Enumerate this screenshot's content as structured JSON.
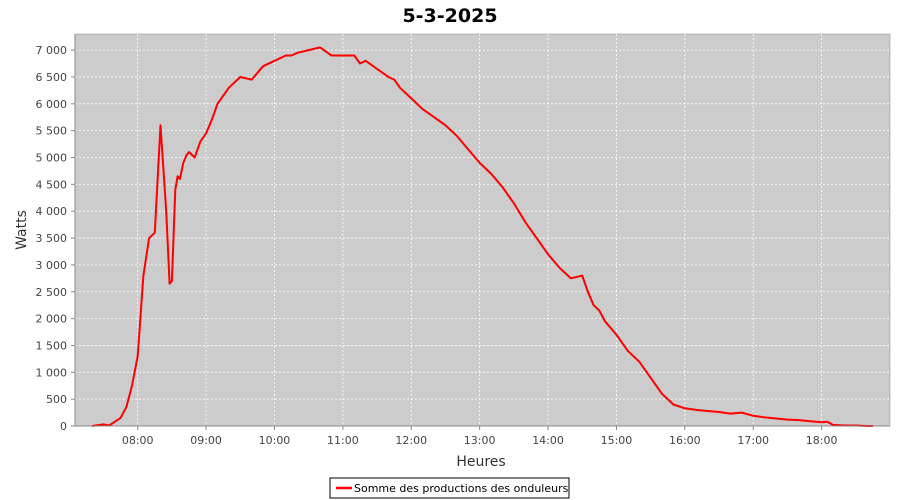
{
  "chart_data": {
    "type": "line",
    "title": "5-3-2025",
    "xlabel": "Heures",
    "ylabel": "Watts",
    "xlim": [
      "07:05",
      "19:00"
    ],
    "ylim": [
      0,
      7300
    ],
    "grid": true,
    "legend_position": "bottom-center",
    "colors": {
      "plot_background": "#cccccc",
      "grid": "#ffffff",
      "series": "#ff0000"
    },
    "x_ticks": [
      "08:00",
      "09:00",
      "10:00",
      "11:00",
      "12:00",
      "13:00",
      "14:00",
      "15:00",
      "16:00",
      "17:00",
      "18:00"
    ],
    "y_ticks": [
      "0",
      "500",
      "1 000",
      "1 500",
      "2 000",
      "2 500",
      "3 000",
      "3 500",
      "4 000",
      "4 500",
      "5 000",
      "5 500",
      "6 000",
      "6 500",
      "7 000"
    ],
    "y_tick_values": [
      0,
      500,
      1000,
      1500,
      2000,
      2500,
      3000,
      3500,
      4000,
      4500,
      5000,
      5500,
      6000,
      6500,
      7000
    ],
    "series": [
      {
        "name": "Somme des productions des onduleurs",
        "x": [
          "07:20",
          "07:30",
          "07:35",
          "07:40",
          "07:45",
          "07:50",
          "07:55",
          "08:00",
          "08:05",
          "08:10",
          "08:15",
          "08:20",
          "08:25",
          "08:28",
          "08:30",
          "08:33",
          "08:35",
          "08:37",
          "08:40",
          "08:43",
          "08:45",
          "08:50",
          "08:55",
          "09:00",
          "09:05",
          "09:10",
          "09:15",
          "09:20",
          "09:30",
          "09:40",
          "09:50",
          "10:00",
          "10:10",
          "10:15",
          "10:20",
          "10:30",
          "10:40",
          "10:50",
          "11:00",
          "11:10",
          "11:15",
          "11:20",
          "11:30",
          "11:40",
          "11:45",
          "11:50",
          "12:00",
          "12:10",
          "12:20",
          "12:30",
          "12:40",
          "12:50",
          "13:00",
          "13:10",
          "13:20",
          "13:30",
          "13:40",
          "13:50",
          "14:00",
          "14:10",
          "14:20",
          "14:30",
          "14:35",
          "14:40",
          "14:45",
          "14:50",
          "15:00",
          "15:10",
          "15:20",
          "15:30",
          "15:40",
          "15:50",
          "16:00",
          "16:10",
          "16:20",
          "16:30",
          "16:40",
          "16:50",
          "17:00",
          "17:10",
          "17:20",
          "17:30",
          "17:40",
          "17:50",
          "18:00",
          "18:05",
          "18:10",
          "18:20",
          "18:30",
          "18:40",
          "18:45"
        ],
        "y": [
          0,
          30,
          10,
          80,
          150,
          350,
          750,
          1300,
          2800,
          3500,
          3600,
          5600,
          4000,
          2650,
          2700,
          4400,
          4650,
          4600,
          4900,
          5050,
          5100,
          5000,
          5300,
          5450,
          5700,
          6000,
          6150,
          6300,
          6500,
          6450,
          6700,
          6800,
          6900,
          6900,
          6950,
          7000,
          7050,
          6900,
          6900,
          6900,
          6750,
          6800,
          6650,
          6500,
          6450,
          6300,
          6100,
          5900,
          5750,
          5600,
          5400,
          5150,
          4900,
          4700,
          4450,
          4150,
          3800,
          3500,
          3200,
          2950,
          2750,
          2800,
          2500,
          2250,
          2150,
          1950,
          1700,
          1400,
          1200,
          900,
          600,
          400,
          330,
          300,
          280,
          260,
          230,
          250,
          190,
          160,
          140,
          120,
          110,
          90,
          70,
          80,
          20,
          10,
          10,
          0,
          0
        ]
      }
    ]
  }
}
